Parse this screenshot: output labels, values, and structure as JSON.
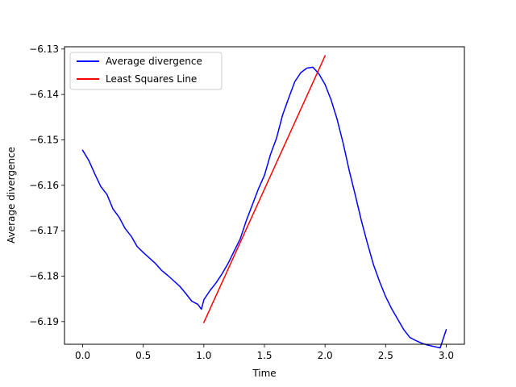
{
  "chart_data": {
    "type": "line",
    "title": "",
    "xlabel": "Time",
    "ylabel": "Average divergence",
    "xlim": [
      -0.15,
      3.15
    ],
    "ylim": [
      -6.195,
      -6.1295
    ],
    "xticks": [
      {
        "value": 0.0,
        "label": "0.0"
      },
      {
        "value": 0.5,
        "label": "0.5"
      },
      {
        "value": 1.0,
        "label": "1.0"
      },
      {
        "value": 1.5,
        "label": "1.5"
      },
      {
        "value": 2.0,
        "label": "2.0"
      },
      {
        "value": 2.5,
        "label": "2.5"
      },
      {
        "value": 3.0,
        "label": "3.0"
      }
    ],
    "yticks": [
      {
        "value": -6.19,
        "label": "−6.19"
      },
      {
        "value": -6.18,
        "label": "−6.18"
      },
      {
        "value": -6.17,
        "label": "−6.17"
      },
      {
        "value": -6.16,
        "label": "−6.16"
      },
      {
        "value": -6.15,
        "label": "−6.15"
      },
      {
        "value": -6.14,
        "label": "−6.14"
      },
      {
        "value": -6.13,
        "label": "−6.13"
      }
    ],
    "grid": false,
    "legend_position": "upper left",
    "series": [
      {
        "name": "Average divergence",
        "color": "#0000ff",
        "x": [
          0.0,
          0.05,
          0.1,
          0.15,
          0.2,
          0.25,
          0.3,
          0.35,
          0.4,
          0.45,
          0.5,
          0.55,
          0.6,
          0.65,
          0.7,
          0.75,
          0.8,
          0.85,
          0.9,
          0.95,
          0.98,
          1.0,
          1.05,
          1.1,
          1.15,
          1.2,
          1.25,
          1.3,
          1.35,
          1.4,
          1.45,
          1.5,
          1.55,
          1.6,
          1.65,
          1.7,
          1.75,
          1.8,
          1.85,
          1.9,
          1.95,
          2.0,
          2.05,
          2.1,
          2.15,
          2.2,
          2.25,
          2.3,
          2.35,
          2.4,
          2.45,
          2.5,
          2.55,
          2.6,
          2.65,
          2.7,
          2.75,
          2.8,
          2.85,
          2.9,
          2.95,
          3.0
        ],
        "y": [
          -6.1523,
          -6.1545,
          -6.1575,
          -6.1603,
          -6.162,
          -6.1652,
          -6.167,
          -6.1695,
          -6.1712,
          -6.1735,
          -6.1748,
          -6.176,
          -6.1772,
          -6.1787,
          -6.1798,
          -6.181,
          -6.1822,
          -6.1838,
          -6.1855,
          -6.1862,
          -6.1873,
          -6.1852,
          -6.1832,
          -6.1815,
          -6.1795,
          -6.1772,
          -6.1745,
          -6.1718,
          -6.1678,
          -6.1643,
          -6.1608,
          -6.1578,
          -6.1532,
          -6.1496,
          -6.1445,
          -6.1408,
          -6.1372,
          -6.1352,
          -6.1342,
          -6.134,
          -6.1355,
          -6.1378,
          -6.1412,
          -6.1455,
          -6.1508,
          -6.1568,
          -6.1622,
          -6.1678,
          -6.1728,
          -6.1775,
          -6.1812,
          -6.1845,
          -6.1872,
          -6.1895,
          -6.1918,
          -6.1935,
          -6.1942,
          -6.1948,
          -6.1952,
          -6.1955,
          -6.1958,
          -6.1918
        ]
      },
      {
        "name": "Least Squares Line",
        "color": "#ff0000",
        "x": [
          1.0,
          2.0
        ],
        "y": [
          -6.1902,
          -6.1315
        ]
      }
    ]
  }
}
